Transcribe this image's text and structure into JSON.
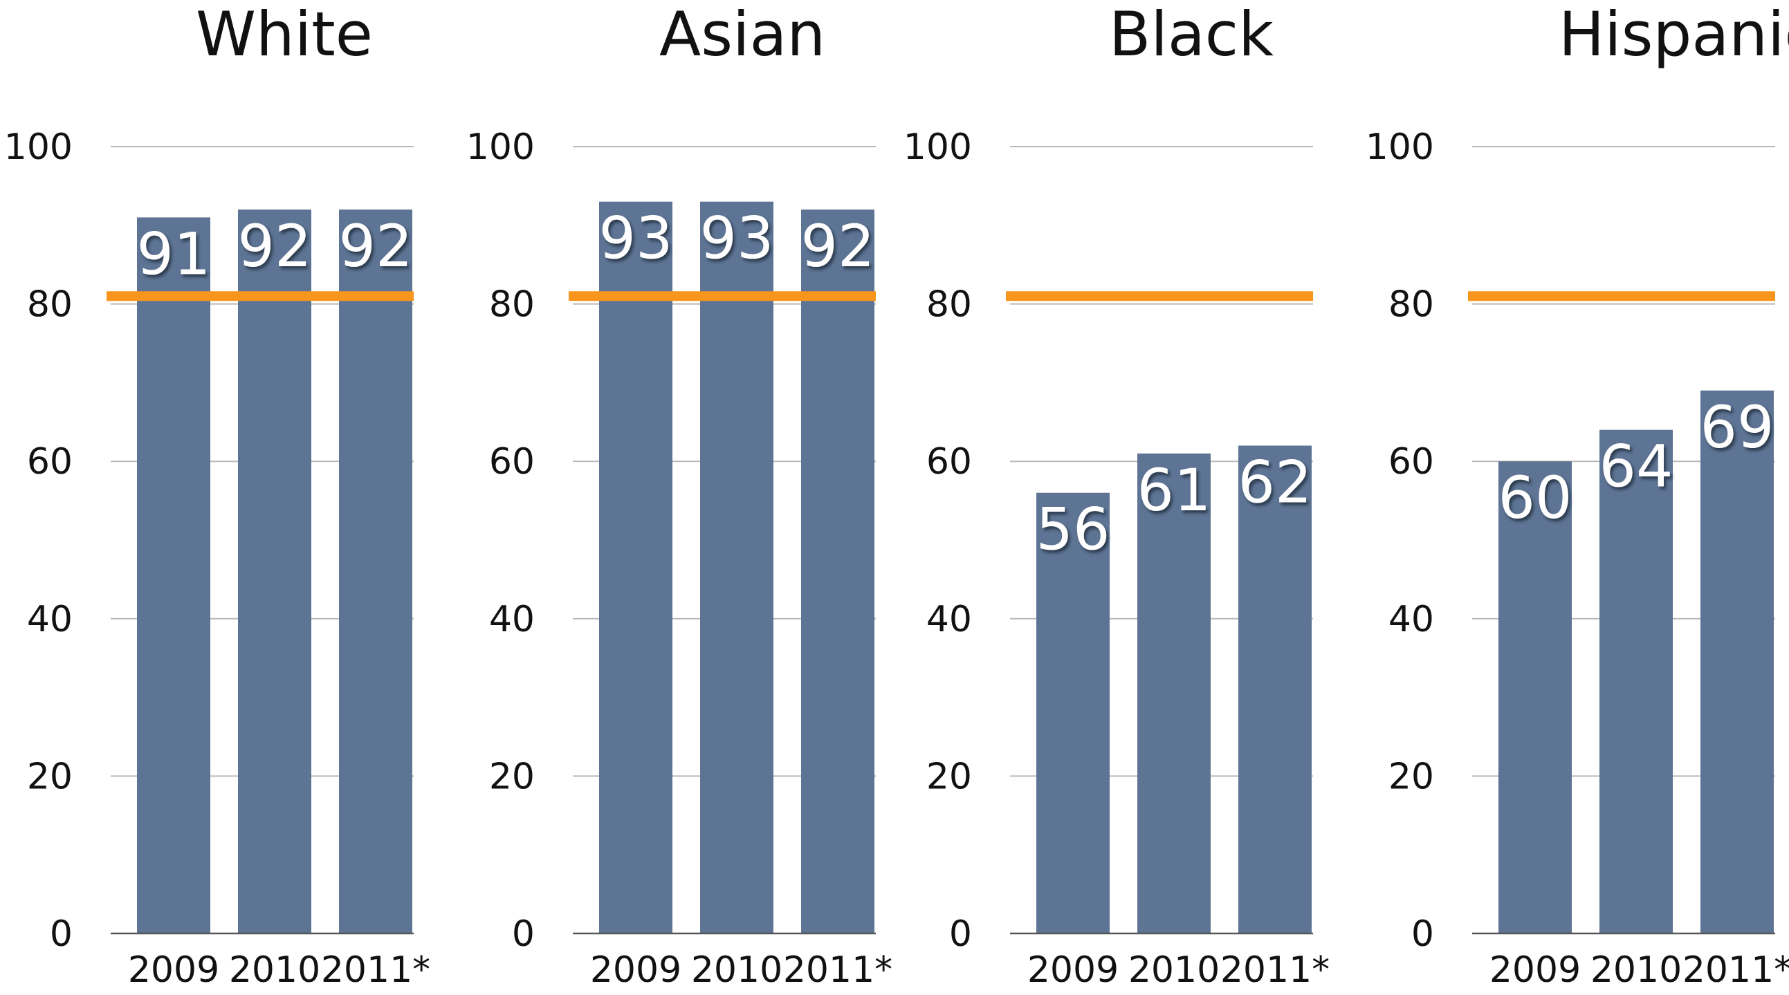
{
  "chart_data": [
    {
      "type": "bar",
      "title": "White",
      "categories": [
        "2009",
        "2010",
        "2011*"
      ],
      "values": [
        91,
        92,
        92
      ],
      "ylim": [
        0,
        100
      ],
      "yticks": [
        0,
        20,
        40,
        60,
        80,
        100
      ],
      "reference_line": 81,
      "grid": true
    },
    {
      "type": "bar",
      "title": "Asian",
      "categories": [
        "2009",
        "2010",
        "2011*"
      ],
      "values": [
        93,
        93,
        92
      ],
      "ylim": [
        0,
        100
      ],
      "yticks": [
        0,
        20,
        40,
        60,
        80,
        100
      ],
      "reference_line": 81,
      "grid": true
    },
    {
      "type": "bar",
      "title": "Black",
      "categories": [
        "2009",
        "2010",
        "2011*"
      ],
      "values": [
        56,
        61,
        62
      ],
      "ylim": [
        0,
        100
      ],
      "yticks": [
        0,
        20,
        40,
        60,
        80,
        100
      ],
      "reference_line": 81,
      "grid": true
    },
    {
      "type": "bar",
      "title": "Hispanic",
      "categories": [
        "2009",
        "2010",
        "2011*"
      ],
      "values": [
        60,
        64,
        69
      ],
      "ylim": [
        0,
        100
      ],
      "yticks": [
        0,
        20,
        40,
        60,
        80,
        100
      ],
      "reference_line": 81,
      "grid": true
    }
  ],
  "colors": {
    "bar": "#5e7494",
    "bar_edge": "#52678a",
    "reference_line": "#f7951d",
    "value_label": "#ffffff",
    "value_label_shadow": "#1d2736"
  }
}
